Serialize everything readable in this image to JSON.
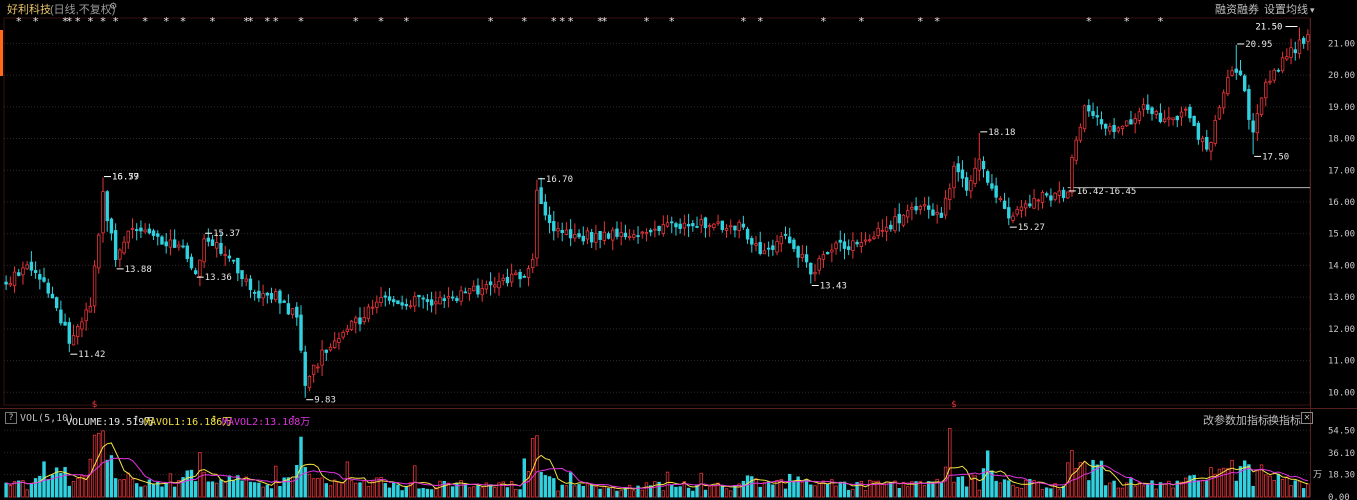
{
  "header": {
    "stock_name": "好利科技",
    "mode": "(日线,不复权)",
    "margin_label": "融资融券",
    "ma_settings_label": "设置均线",
    "ma_settings_arrow": "▾"
  },
  "volume_panel": {
    "help_label": "?",
    "indicator_name": "VOL(5,10)",
    "volume_text": "VOLUME:19.519万",
    "mavol1_text": "MAVOL1:16.186万",
    "mavol2_text": "MAVOL2:13.108万",
    "up_arrow": "↑",
    "change_params_label": "改参数",
    "add_indicator_label": "加指标",
    "switch_indicator_label": "换指标",
    "close_label": "✕"
  },
  "colors": {
    "up": "#e8353a",
    "down": "#31d2e0",
    "background": "#000000",
    "grid": "#2b2b2b",
    "axis_text": "#c8c8c8",
    "mavol1": "#f5e342",
    "mavol2": "#e032e0",
    "title": "#e8c46a"
  },
  "chart_data": [
    {
      "type": "candlestick",
      "price_axis_ticks": [
        21.0,
        20.0,
        19.0,
        18.0,
        17.0,
        16.0,
        15.0,
        14.0,
        13.0,
        12.0,
        11.0,
        10.0
      ],
      "y_range": [
        9.6,
        21.8
      ],
      "extremes": [
        {
          "index": 15,
          "label": "11.42"
        },
        {
          "index": 23,
          "label": "16.77"
        },
        {
          "index": 23,
          "label": "16.59"
        },
        {
          "index": 26,
          "label": "13.88"
        },
        {
          "index": 47,
          "label": "15.37"
        },
        {
          "index": 45,
          "label": "13.36"
        },
        {
          "index": 71,
          "label": "9.83"
        },
        {
          "index": 126,
          "label": "16.70"
        },
        {
          "index": 191,
          "label": "13.43"
        },
        {
          "index": 231,
          "label": "18.18"
        },
        {
          "index": 238,
          "label": "15.27"
        },
        {
          "index": 252,
          "label": "16.42-16.45"
        },
        {
          "index": 292,
          "label": "20.95"
        },
        {
          "index": 296,
          "label": "17.50"
        },
        {
          "index": 307,
          "label": "21.50"
        }
      ],
      "reference_line_value": 16.45,
      "news_markers_label": "*",
      "news_marker_indices": [
        3,
        7,
        14,
        15,
        17,
        20,
        23,
        26,
        33,
        38,
        42,
        49,
        57,
        58,
        62,
        64,
        70,
        83,
        89,
        95,
        115,
        123,
        130,
        132,
        134,
        141,
        142,
        152,
        158,
        175,
        179,
        194,
        203,
        217,
        221,
        257,
        266,
        274
      ],
      "dividend_marker_label": "$",
      "dividend_marker_indices": [
        21,
        225
      ]
    },
    {
      "type": "bar",
      "title": "VOL(5,10)",
      "axis_ticks": [
        54.5,
        36.1,
        18.3,
        0.0
      ],
      "tick_labels": [
        "54.50",
        "36.10",
        "18.30",
        "0.00"
      ],
      "unit_label": "万",
      "y_range": [
        0,
        58
      ],
      "series": [
        {
          "name": "VOLUME"
        },
        {
          "name": "MAVOL1"
        },
        {
          "name": "MAVOL2"
        }
      ]
    }
  ]
}
